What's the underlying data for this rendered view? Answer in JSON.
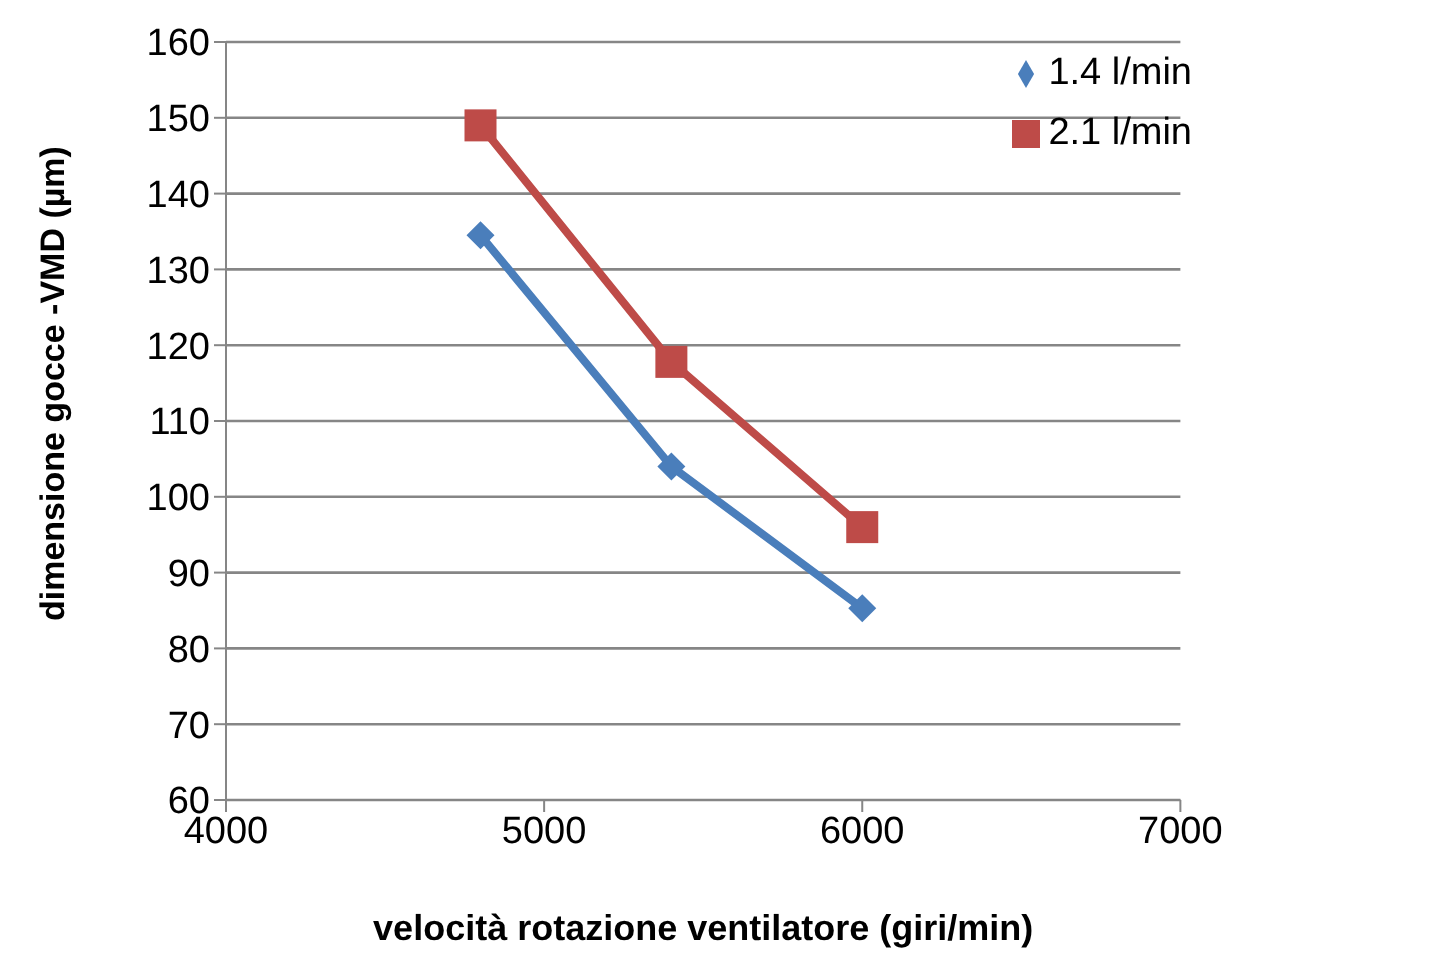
{
  "chart_data": {
    "type": "line",
    "xlabel": "velocità rotazione ventilatore (giri/min)",
    "ylabel": "dimensione gocce -VMD (µm)",
    "x": [
      4800,
      5400,
      6000
    ],
    "series": [
      {
        "name": "1.4 l/min",
        "color": "#4a7ebb",
        "values": [
          134.5,
          104,
          85.3
        ],
        "marker": "diamond"
      },
      {
        "name": "2.1 l/min",
        "color": "#be4b48",
        "values": [
          149,
          117.8,
          96
        ],
        "marker": "square"
      }
    ],
    "xlim": [
      4000,
      7000
    ],
    "xticks": [
      4000,
      5000,
      6000,
      7000
    ],
    "ylim": [
      60,
      160
    ],
    "yticks": [
      60,
      70,
      80,
      90,
      100,
      110,
      120,
      130,
      140,
      150,
      160
    ],
    "grid": "y",
    "legend": "top right",
    "line_style": "solid"
  }
}
